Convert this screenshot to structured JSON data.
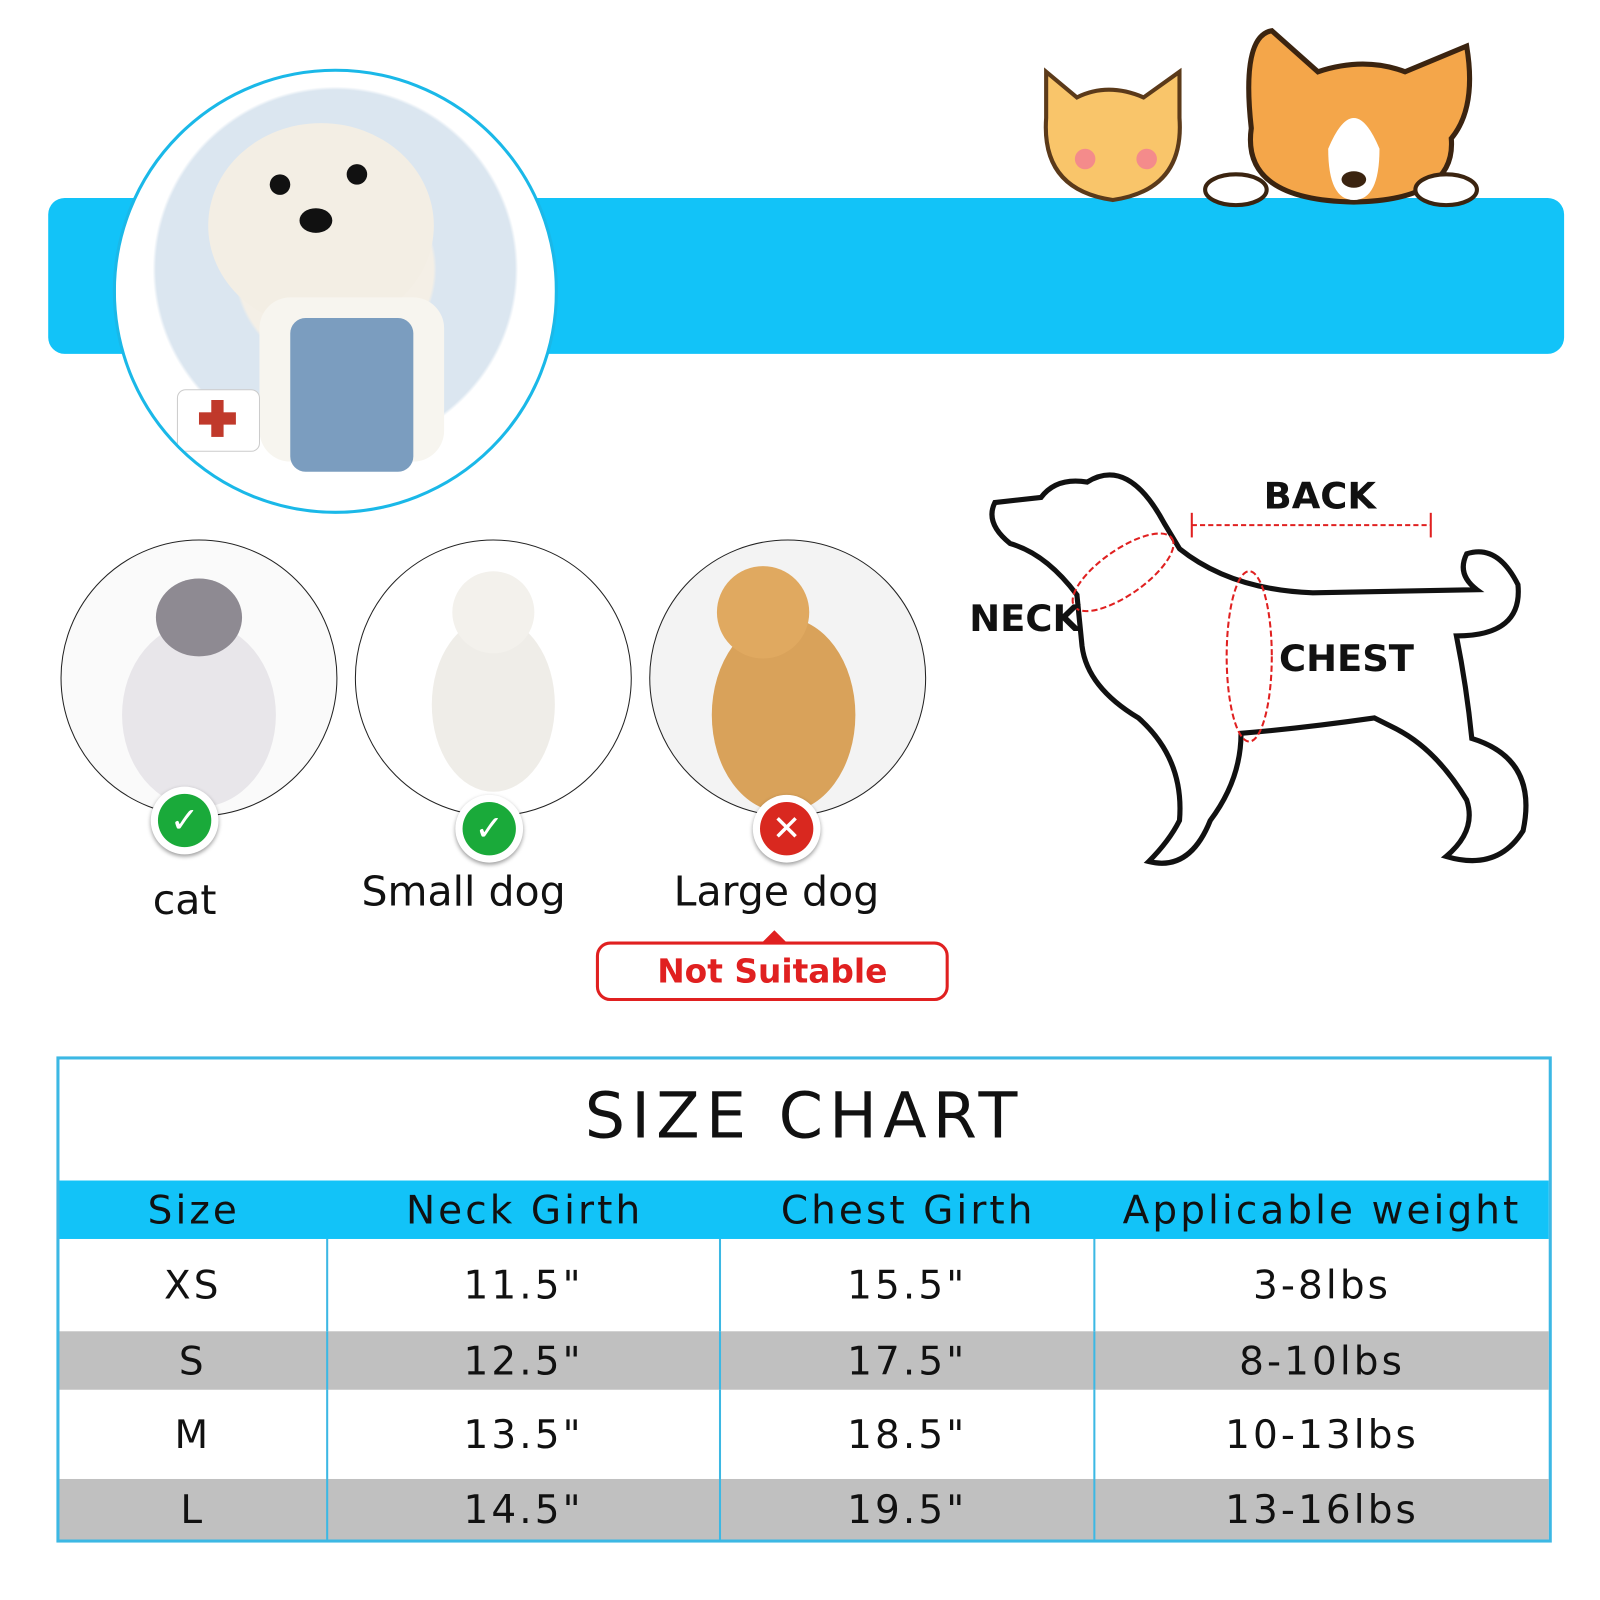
{
  "colors": {
    "accent": "#12c3f8",
    "not_suitable": "#e02020",
    "check": "#1aaa3a",
    "row_alt": "#c0c0c0"
  },
  "suitability": [
    {
      "label": "cat",
      "suitable": true,
      "icon": "check-icon"
    },
    {
      "label": "Small dog",
      "suitable": true,
      "icon": "check-icon"
    },
    {
      "label": "Large dog",
      "suitable": false,
      "icon": "x-icon"
    }
  ],
  "not_suitable_label": "Not Suitable",
  "measurements": {
    "back": "BACK",
    "neck": "NECK",
    "chest": "CHEST"
  },
  "size_chart": {
    "title": "SIZE CHART",
    "headers": [
      "Size",
      "Neck Girth",
      "Chest Girth",
      "Applicable weight"
    ],
    "rows": [
      [
        "XS",
        "11.5\"",
        "15.5\"",
        "3-8lbs"
      ],
      [
        "S",
        "12.5\"",
        "17.5\"",
        "8-10lbs"
      ],
      [
        "M",
        "13.5\"",
        "18.5\"",
        "10-13lbs"
      ],
      [
        "L",
        "14.5\"",
        "19.5\"",
        "13-16lbs"
      ]
    ]
  }
}
